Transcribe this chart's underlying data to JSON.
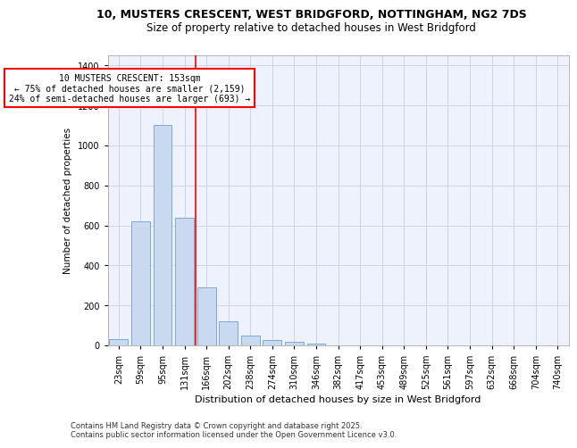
{
  "title_line1": "10, MUSTERS CRESCENT, WEST BRIDGFORD, NOTTINGHAM, NG2 7DS",
  "title_line2": "Size of property relative to detached houses in West Bridgford",
  "xlabel": "Distribution of detached houses by size in West Bridgford",
  "ylabel": "Number of detached properties",
  "categories": [
    "23sqm",
    "59sqm",
    "95sqm",
    "131sqm",
    "166sqm",
    "202sqm",
    "238sqm",
    "274sqm",
    "310sqm",
    "346sqm",
    "382sqm",
    "417sqm",
    "453sqm",
    "489sqm",
    "525sqm",
    "561sqm",
    "597sqm",
    "632sqm",
    "668sqm",
    "704sqm",
    "740sqm"
  ],
  "values": [
    30,
    620,
    1100,
    640,
    290,
    120,
    50,
    25,
    20,
    10,
    0,
    0,
    0,
    0,
    0,
    0,
    0,
    0,
    0,
    0,
    0
  ],
  "bar_color": "#c9d9f0",
  "bar_edge_color": "#7baad4",
  "vline_x_index": 4,
  "marker_label_line1": "10 MUSTERS CRESCENT: 153sqm",
  "marker_label_line2": "← 75% of detached houses are smaller (2,159)",
  "marker_label_line3": "24% of semi-detached houses are larger (693) →",
  "vline_color": "red",
  "ylim": [
    0,
    1450
  ],
  "yticks": [
    0,
    200,
    400,
    600,
    800,
    1000,
    1200,
    1400
  ],
  "background_color": "#edf2fc",
  "grid_color": "#c8d0e0",
  "footer_line1": "Contains HM Land Registry data © Crown copyright and database right 2025.",
  "footer_line2": "Contains public sector information licensed under the Open Government Licence v3.0."
}
